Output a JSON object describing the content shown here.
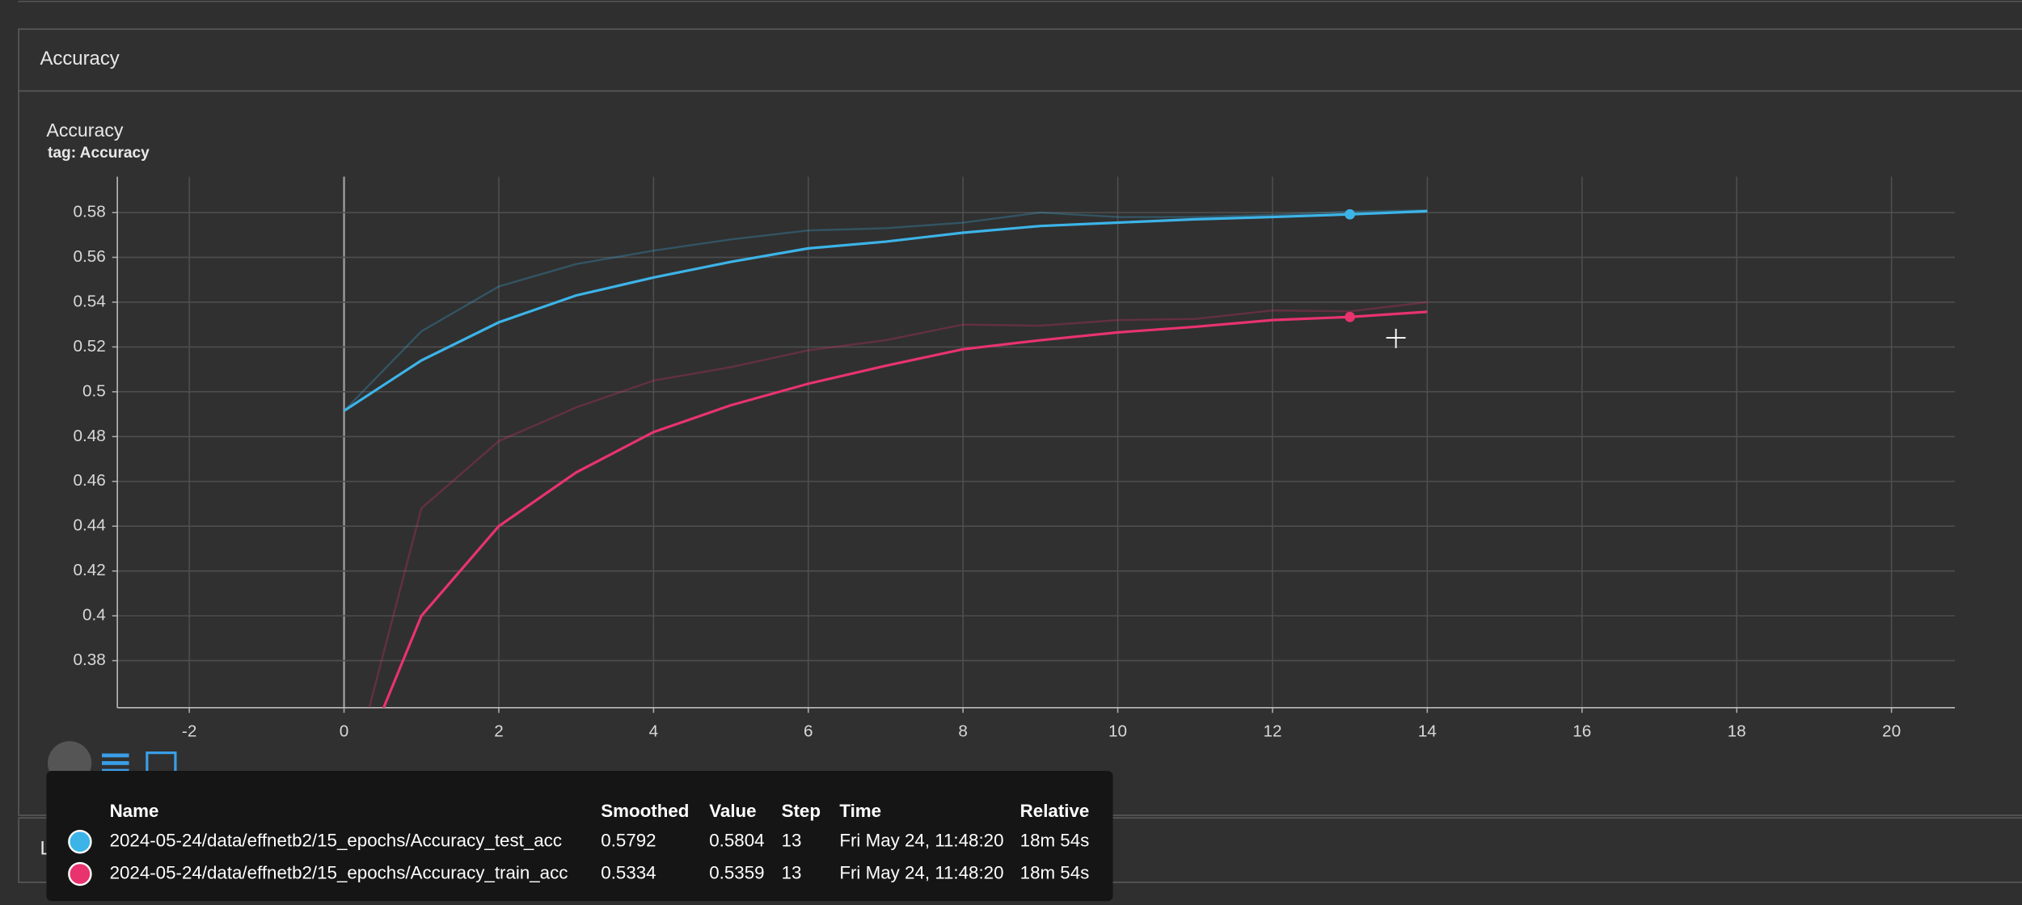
{
  "sections": [
    "Accuracy",
    "Loss"
  ],
  "chart_data": {
    "type": "line",
    "title": "Accuracy",
    "subtitle": "tag: Accuracy",
    "x": [
      0,
      1,
      2,
      3,
      4,
      5,
      6,
      7,
      8,
      9,
      10,
      11,
      12,
      13,
      14
    ],
    "series": [
      {
        "name": "2024-05-24/data/effnetb2/15_epochs/Accuracy_test_acc",
        "color": "#3cb4e8",
        "values": [
          0.4915,
          0.514,
          0.531,
          0.543,
          0.551,
          0.558,
          0.564,
          0.567,
          0.571,
          0.574,
          0.5755,
          0.577,
          0.578,
          0.5792,
          0.5806
        ],
        "raw_values": [
          0.4915,
          0.527,
          0.547,
          0.557,
          0.563,
          0.568,
          0.572,
          0.573,
          0.5755,
          0.58,
          0.578,
          0.578,
          0.579,
          0.5804,
          0.581
        ]
      },
      {
        "name": "2024-05-24/data/effnetb2/15_epochs/Accuracy_train_acc",
        "color": "#e8336f",
        "values": [
          0.316,
          0.4,
          0.44,
          0.464,
          0.482,
          0.494,
          0.5036,
          0.5116,
          0.519,
          0.523,
          0.5265,
          0.529,
          0.532,
          0.5334,
          0.5357
        ],
        "raw_values": [
          0.316,
          0.448,
          0.478,
          0.493,
          0.505,
          0.511,
          0.5185,
          0.523,
          0.53,
          0.5295,
          0.532,
          0.5325,
          0.5363,
          0.5359,
          0.54
        ]
      }
    ],
    "xlim": [
      -2.93,
      20.82
    ],
    "xticks": [
      -2,
      0,
      2,
      4,
      6,
      8,
      10,
      12,
      14,
      16,
      18,
      20
    ],
    "ylim": [
      0.359,
      0.596
    ],
    "yticks": [
      0.38,
      0.4,
      0.42,
      0.44,
      0.46,
      0.48,
      0.5,
      0.52,
      0.54,
      0.56,
      0.58
    ],
    "grid": true,
    "tooltip": {
      "columns": [
        "Name",
        "Smoothed",
        "Value",
        "Step",
        "Time",
        "Relative"
      ],
      "rows": [
        {
          "smoothed": 0.5792,
          "value": 0.5804,
          "step": 13,
          "time": "Fri May 24, 11:48:20",
          "relative": "18m 54s"
        },
        {
          "smoothed": 0.5334,
          "value": 0.5359,
          "step": 13,
          "time": "Fri May 24, 11:48:20",
          "relative": "18m 54s"
        }
      ]
    }
  }
}
